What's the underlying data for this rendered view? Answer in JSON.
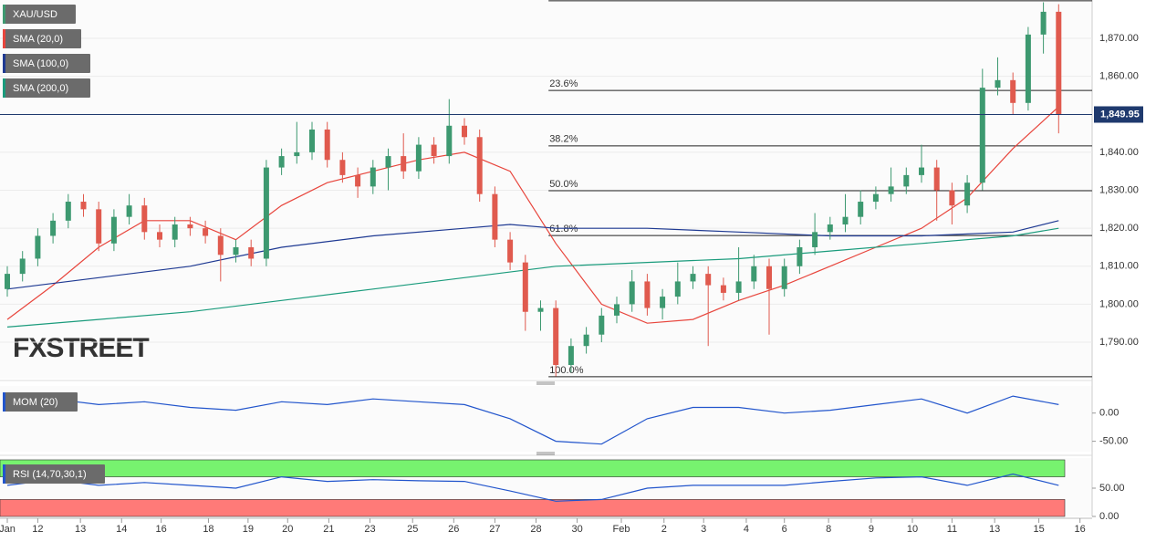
{
  "chart_data": [
    {
      "type": "candlestick",
      "name": "XAU/USD",
      "watermark": "FXSTREET",
      "color_up": "#3d9970",
      "color_down": "#e05a4e",
      "open": [
        1804,
        1808,
        1812,
        1818,
        1822,
        1827,
        1825,
        1816,
        1823,
        1826,
        1819,
        1817,
        1821,
        1820,
        1818,
        1813,
        1815,
        1812,
        1836,
        1839,
        1840,
        1846,
        1838,
        1834,
        1831,
        1836,
        1839,
        1835,
        1842,
        1839,
        1847,
        1844,
        1829,
        1817,
        1811,
        1798,
        1799,
        1784,
        1789,
        1792,
        1797,
        1800,
        1806,
        1799,
        1802,
        1806,
        1808,
        1805,
        1803,
        1806,
        1810,
        1804,
        1810,
        1815,
        1819,
        1821,
        1823,
        1827,
        1829,
        1831,
        1834,
        1836,
        1830,
        1826,
        1832,
        1857,
        1859,
        1853,
        1871,
        1877
      ],
      "high": [
        1810,
        1814,
        1820,
        1824,
        1829,
        1829,
        1827,
        1825,
        1829,
        1828,
        1821,
        1823,
        1823,
        1822,
        1820,
        1817,
        1817,
        1838,
        1841,
        1848,
        1848,
        1848,
        1840,
        1836,
        1838,
        1841,
        1845,
        1844,
        1844,
        1854,
        1849,
        1846,
        1831,
        1819,
        1813,
        1801,
        1801,
        1791,
        1794,
        1799,
        1802,
        1809,
        1808,
        1804,
        1811,
        1810,
        1810,
        1807,
        1815,
        1813,
        1812,
        1812,
        1817,
        1824,
        1823,
        1829,
        1830,
        1831,
        1836,
        1836,
        1842,
        1838,
        1832,
        1834,
        1862,
        1865,
        1861,
        1873,
        1879.5,
        1879
      ],
      "low": [
        1802,
        1806,
        1810,
        1816,
        1820,
        1823,
        1814,
        1814,
        1821,
        1817,
        1815,
        1815,
        1818,
        1816,
        1806,
        1811,
        1810,
        1810,
        1834,
        1837,
        1838,
        1836,
        1832,
        1828,
        1829,
        1830,
        1833,
        1833,
        1837,
        1837,
        1842,
        1827,
        1815,
        1809,
        1793,
        1793,
        1781,
        1782,
        1787,
        1790,
        1795,
        1798,
        1797,
        1796,
        1800,
        1804,
        1789,
        1801,
        1801,
        1804,
        1792,
        1802,
        1808,
        1813,
        1817,
        1819,
        1821,
        1825,
        1827,
        1829,
        1832,
        1822,
        1821,
        1824,
        1830,
        1855,
        1850,
        1851,
        1866,
        1845
      ],
      "close": [
        1808,
        1812,
        1818,
        1822,
        1827,
        1825,
        1816,
        1823,
        1826,
        1819,
        1817,
        1821,
        1820,
        1818,
        1813,
        1815,
        1812,
        1836,
        1839,
        1840,
        1846,
        1838,
        1834,
        1831,
        1836,
        1839,
        1835,
        1842,
        1839,
        1847,
        1844,
        1829,
        1817,
        1811,
        1798,
        1799,
        1784,
        1789,
        1792,
        1797,
        1800,
        1806,
        1799,
        1802,
        1806,
        1808,
        1805,
        1803,
        1806,
        1810,
        1804,
        1810,
        1815,
        1819,
        1821,
        1823,
        1827,
        1829,
        1831,
        1834,
        1836,
        1830,
        1826,
        1832,
        1857,
        1859,
        1853,
        1871,
        1877,
        1849.95
      ],
      "series": [
        {
          "name": "SMA (20,0)",
          "color": "#e8453c",
          "x": [
            0,
            3,
            6,
            9,
            12,
            15,
            18,
            21,
            24,
            27,
            30,
            33,
            36,
            39,
            42,
            45,
            48,
            51,
            54,
            57,
            60,
            63,
            66,
            69
          ],
          "values": [
            1796,
            1805,
            1815,
            1822,
            1822,
            1817,
            1826,
            1832,
            1835,
            1838,
            1840,
            1835,
            1816,
            1800,
            1795,
            1796,
            1801,
            1805,
            1810,
            1815,
            1820,
            1828,
            1841,
            1852
          ]
        },
        {
          "name": "SMA (100,0)",
          "color": "#1f3a93",
          "x": [
            0,
            6,
            12,
            18,
            24,
            30,
            33,
            36,
            42,
            48,
            54,
            60,
            66,
            69
          ],
          "values": [
            1804,
            1807,
            1810,
            1815,
            1818,
            1820,
            1821,
            1820,
            1820,
            1819,
            1818,
            1818,
            1819,
            1822
          ]
        },
        {
          "name": "SMA (200,0)",
          "color": "#1a9b7c",
          "x": [
            0,
            6,
            12,
            18,
            24,
            30,
            36,
            42,
            48,
            54,
            60,
            66,
            69
          ],
          "values": [
            1794,
            1796,
            1798,
            1801,
            1804,
            1807,
            1810,
            1811,
            1812,
            1814,
            1816,
            1818,
            1820
          ]
        }
      ],
      "ylim": [
        1780.4,
        1880.1
      ],
      "yticks": [
        {
          "value": 1790,
          "label": "1,790.00"
        },
        {
          "value": 1800,
          "label": "1,800.00"
        },
        {
          "value": 1810,
          "label": "1,810.00"
        },
        {
          "value": 1820,
          "label": "1,820.00"
        },
        {
          "value": 1830,
          "label": "1,830.00"
        },
        {
          "value": 1840,
          "label": "1,840.00"
        },
        {
          "value": 1850,
          "label": "1,850.00"
        },
        {
          "value": 1860,
          "label": "1,860.00"
        },
        {
          "value": 1870,
          "label": "1,870.00"
        }
      ],
      "last_price": {
        "value": 1849.95,
        "label": "1,849.95"
      },
      "fibonacci": [
        {
          "value": 1856.3,
          "label": "23.6%"
        },
        {
          "value": 1841.7,
          "label": "38.2%"
        },
        {
          "value": 1829.9,
          "label": "50.0%"
        },
        {
          "value": 1818.1,
          "label": "61.8%"
        },
        {
          "value": 1780.9,
          "label": "100.0%"
        }
      ],
      "fibonacci_high": 1879.9
    },
    {
      "type": "line",
      "series": [
        {
          "name": "MOM (20)",
          "color": "#2255cc",
          "x": [
            0,
            3,
            6,
            9,
            12,
            15,
            18,
            21,
            24,
            27,
            30,
            33,
            36,
            39,
            42,
            45,
            48,
            51,
            54,
            57,
            60,
            63,
            66,
            69
          ],
          "values": [
            5,
            25,
            15,
            20,
            10,
            5,
            20,
            15,
            25,
            20,
            15,
            -10,
            -50,
            -55,
            -10,
            10,
            10,
            0,
            5,
            15,
            25,
            0,
            30,
            15
          ]
        }
      ],
      "ylim": [
        -68.4,
        48
      ],
      "yticks": [
        {
          "value": 0,
          "label": "0.00"
        },
        {
          "value": -50,
          "label": "-50.00"
        }
      ]
    },
    {
      "type": "line",
      "series": [
        {
          "name": "RSI (14,70,30,1)",
          "color": "#2255cc",
          "x": [
            0,
            3,
            6,
            9,
            12,
            15,
            18,
            21,
            24,
            27,
            30,
            33,
            36,
            39,
            42,
            45,
            48,
            51,
            54,
            57,
            60,
            63,
            66,
            69
          ],
          "values": [
            55,
            65,
            55,
            60,
            55,
            50,
            70,
            62,
            65,
            63,
            62,
            45,
            27,
            30,
            50,
            55,
            55,
            55,
            62,
            68,
            70,
            55,
            75,
            55
          ]
        }
      ],
      "bands": [
        {
          "range": [
            70,
            100
          ],
          "color": "#77f26f"
        },
        {
          "range": [
            0,
            30
          ],
          "color": "#ff7a78"
        }
      ],
      "ylim": [
        0,
        103.2
      ],
      "yticks": [
        {
          "value": 50,
          "label": "50.00"
        },
        {
          "value": 0,
          "label": "0.00"
        }
      ],
      "xticks": [
        {
          "value": 0,
          "label": "Jan"
        },
        {
          "value": 2,
          "label": "12"
        },
        {
          "value": 4.8,
          "label": "13"
        },
        {
          "value": 7.5,
          "label": "14"
        },
        {
          "value": 10.1,
          "label": "16"
        },
        {
          "value": 13.2,
          "label": "18"
        },
        {
          "value": 15.8,
          "label": "19"
        },
        {
          "value": 18.4,
          "label": "20"
        },
        {
          "value": 21.1,
          "label": "21"
        },
        {
          "value": 23.8,
          "label": "23"
        },
        {
          "value": 26.6,
          "label": "25"
        },
        {
          "value": 29.3,
          "label": "26"
        },
        {
          "value": 32,
          "label": "27"
        },
        {
          "value": 34.7,
          "label": "28"
        },
        {
          "value": 37.4,
          "label": "30"
        },
        {
          "value": 40.3,
          "label": "Feb"
        },
        {
          "value": 43.1,
          "label": "2"
        },
        {
          "value": 45.7,
          "label": "3"
        },
        {
          "value": 48.5,
          "label": "4"
        },
        {
          "value": 51,
          "label": "6"
        },
        {
          "value": 53.9,
          "label": "8"
        },
        {
          "value": 56.7,
          "label": "9"
        },
        {
          "value": 59.4,
          "label": "10"
        },
        {
          "value": 62,
          "label": "11"
        },
        {
          "value": 64.8,
          "label": "13"
        },
        {
          "value": 67.7,
          "label": "15"
        },
        {
          "value": 70.4,
          "label": "16"
        }
      ]
    }
  ]
}
